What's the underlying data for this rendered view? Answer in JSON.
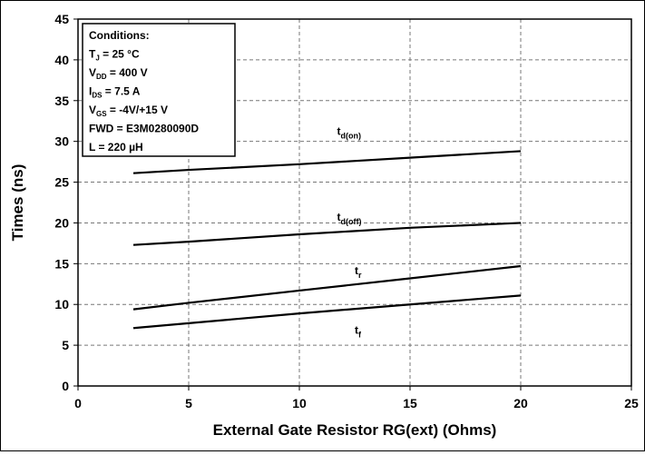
{
  "chart_data": {
    "type": "line",
    "xlabel": "External Gate Resistor RG(ext) (Ohms)",
    "ylabel": "Times (ns)",
    "xlim": [
      0,
      25
    ],
    "ylim": [
      0,
      45
    ],
    "xticks": [
      "0",
      "5",
      "10",
      "15",
      "20",
      "25"
    ],
    "yticks": [
      "0",
      "5",
      "10",
      "15",
      "20",
      "25",
      "30",
      "35",
      "40",
      "45"
    ],
    "grid": true,
    "grid_style": "dashed",
    "line_color": "#000000",
    "series": [
      {
        "name": "t",
        "sub": "d(on)",
        "x": [
          2.5,
          5,
          10,
          15,
          20
        ],
        "values": [
          26.1,
          26.5,
          27.2,
          28.0,
          28.8
        ],
        "label_at": [
          11.7,
          30.8
        ]
      },
      {
        "name": "t",
        "sub": "d(off)",
        "x": [
          2.5,
          5,
          10,
          15,
          20
        ],
        "values": [
          17.3,
          17.7,
          18.6,
          19.4,
          20.0
        ],
        "label_at": [
          11.7,
          20.3
        ]
      },
      {
        "name": "t",
        "sub": "r",
        "x": [
          2.5,
          5,
          10,
          15,
          20
        ],
        "values": [
          9.4,
          10.2,
          11.7,
          13.2,
          14.7
        ],
        "label_at": [
          12.5,
          13.7
        ]
      },
      {
        "name": "t",
        "sub": "f",
        "x": [
          2.5,
          5,
          10,
          15,
          20
        ],
        "values": [
          7.1,
          7.7,
          8.9,
          10.0,
          11.1
        ],
        "label_at": [
          12.5,
          6.4
        ]
      }
    ],
    "annotation": {
      "title": "Conditions:",
      "lines": [
        {
          "main": "T",
          "sub": "J",
          "rest": " = 25 °C"
        },
        {
          "main": "V",
          "sub": "DD",
          "rest": " = 400 V"
        },
        {
          "main": "I",
          "sub": "DS",
          "rest": " = 7.5 A"
        },
        {
          "main": "V",
          "sub": "GS",
          "rest": " = -4V/+15 V"
        },
        {
          "main": "FWD = E3M0280090D",
          "sub": "",
          "rest": ""
        },
        {
          "main": "L = 220 µH",
          "sub": "",
          "rest": ""
        }
      ]
    }
  }
}
